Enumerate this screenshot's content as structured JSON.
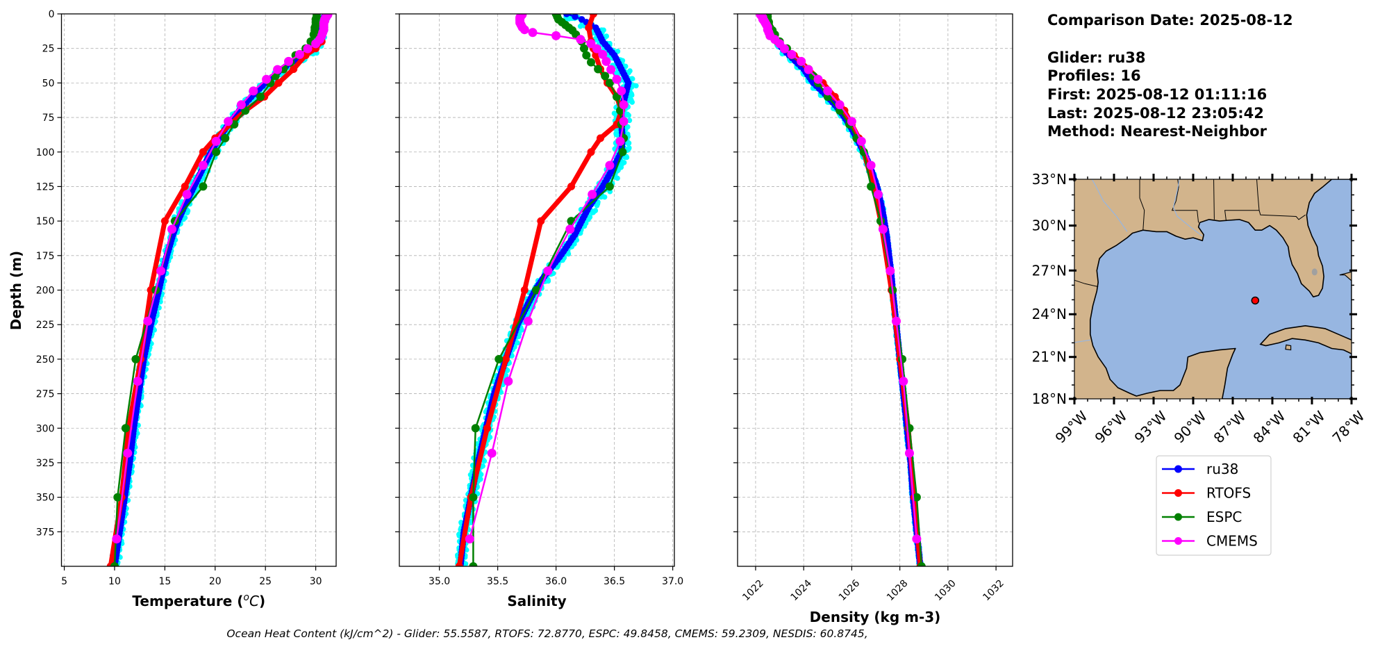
{
  "info": {
    "comparison_date": "Comparison Date: 2025-08-12",
    "glider": "Glider: ru38",
    "profiles": "Profiles: 16",
    "first": "First: 2025-08-12 01:11:16",
    "last": "Last: 2025-08-12 23:05:42",
    "method": "Method: Nearest-Neighbor"
  },
  "footer": "Ocean Heat Content (kJ/cm^2) - Glider: 55.5587,  RTOFS: 72.8770,  ESPC: 49.8458,  CMEMS: 59.2309,  NESDIS: 60.8745,",
  "legend": {
    "placement": "below-map",
    "entries": [
      {
        "label": "ru38",
        "color": "#0000ff"
      },
      {
        "label": "RTOFS",
        "color": "#ff0000"
      },
      {
        "label": "ESPC",
        "color": "#008000"
      },
      {
        "label": "CMEMS",
        "color": "#ff00ff"
      }
    ]
  },
  "chart_data": [
    {
      "type": "line",
      "title": "",
      "xlabel": {
        "prefix": "Temperature (",
        "sup": "o",
        "unit": "C",
        "suffix": ")"
      },
      "ylabel": "Depth (m)",
      "xlim": [
        4.72,
        32.03
      ],
      "ylim": [
        400,
        0
      ],
      "grid": true,
      "xticks": [
        5,
        10,
        15,
        20,
        25,
        30
      ],
      "xtick_labels": [
        "5",
        "10",
        "15",
        "20",
        "25",
        "30"
      ],
      "yticks": [
        0,
        25,
        50,
        75,
        100,
        125,
        150,
        175,
        200,
        225,
        250,
        275,
        300,
        325,
        350,
        375
      ],
      "ytick_labels": [
        "0",
        "25",
        "50",
        "75",
        "100",
        "125",
        "150",
        "175",
        "200",
        "225",
        "250",
        "275",
        "300",
        "325",
        "350",
        "375"
      ],
      "individual_profiles": {
        "count": 16,
        "color": "#00ffff",
        "spread": 0.45
      },
      "series": [
        {
          "name": "ru38",
          "color": "#0000ff",
          "depth": [
            0,
            3,
            10,
            20,
            25,
            30,
            40,
            50,
            60,
            70,
            80,
            90,
            100,
            110,
            125,
            140,
            150,
            160,
            175,
            190,
            200,
            225,
            250,
            275,
            300,
            325,
            350,
            375,
            400
          ],
          "values": [
            30.9,
            30.8,
            30.6,
            30.3,
            29.8,
            28.8,
            26.6,
            25.0,
            23.6,
            22.4,
            21.3,
            20.4,
            19.6,
            18.9,
            17.9,
            16.9,
            16.3,
            15.8,
            15.2,
            14.7,
            14.4,
            13.6,
            12.9,
            12.4,
            11.9,
            11.5,
            11.0,
            10.5,
            10.0
          ]
        },
        {
          "name": "RTOFS",
          "color": "#ff0000",
          "depth": [
            0,
            10,
            20,
            25,
            30,
            40,
            50,
            60,
            70,
            80,
            90,
            100,
            125,
            150,
            200,
            250,
            300,
            350,
            400
          ],
          "values": [
            31.0,
            30.8,
            30.6,
            30.0,
            29.0,
            27.8,
            26.3,
            24.9,
            23.0,
            21.5,
            20.0,
            18.8,
            17.0,
            15.0,
            13.6,
            12.6,
            11.4,
            10.7,
            9.6
          ]
        },
        {
          "name": "ESPC",
          "color": "#008000",
          "depth": [
            0,
            2,
            4,
            6,
            8,
            10,
            12,
            15,
            20,
            25,
            30,
            35,
            40,
            45,
            50,
            60,
            70,
            80,
            90,
            100,
            125,
            150,
            200,
            250,
            300,
            350,
            400
          ],
          "values": [
            30.1,
            30.1,
            30.0,
            30.0,
            30.0,
            29.9,
            29.9,
            29.8,
            29.5,
            29.0,
            28.0,
            27.5,
            26.8,
            26.0,
            25.5,
            24.5,
            23.0,
            21.9,
            21.0,
            20.1,
            18.8,
            16.0,
            14.1,
            12.1,
            11.1,
            10.3,
            10.0
          ]
        },
        {
          "name": "CMEMS",
          "color": "#ff00ff",
          "depth": [
            0.5,
            1.5,
            2.6,
            3.8,
            5.0,
            6.4,
            7.9,
            9.6,
            11.4,
            13.5,
            15.8,
            18.5,
            21.6,
            25.2,
            29.4,
            34.4,
            40.3,
            47.4,
            55.8,
            65.8,
            77.9,
            92.3,
            109.7,
            130.7,
            155.9,
            186.1,
            222.5,
            266.0,
            318.1,
            380.2
          ],
          "values": [
            31.2,
            31.1,
            31.0,
            30.9,
            30.9,
            30.8,
            30.8,
            30.8,
            30.8,
            30.7,
            30.6,
            30.4,
            30.0,
            29.2,
            28.4,
            27.3,
            26.2,
            25.1,
            23.8,
            22.6,
            21.3,
            20.1,
            18.8,
            17.2,
            15.7,
            14.6,
            13.3,
            12.3,
            11.3,
            10.2
          ]
        }
      ]
    },
    {
      "type": "line",
      "title": "",
      "xlabel": "Salinity",
      "xlim": [
        34.657,
        37.014
      ],
      "ylim": [
        400,
        0
      ],
      "grid": true,
      "xticks": [
        35.0,
        35.5,
        36.0,
        36.5,
        37.0
      ],
      "xtick_labels": [
        "35.0",
        "35.5",
        "36.0",
        "36.5",
        "37.0"
      ],
      "yticks": [
        0,
        25,
        50,
        75,
        100,
        125,
        150,
        175,
        200,
        225,
        250,
        275,
        300,
        325,
        350,
        375
      ],
      "individual_profiles": {
        "count": 16,
        "color": "#00ffff",
        "spread": 0.05
      },
      "series": [
        {
          "name": "ru38",
          "color": "#0000ff",
          "depth": [
            0,
            3,
            10,
            20,
            25,
            30,
            40,
            50,
            60,
            70,
            80,
            90,
            100,
            110,
            125,
            140,
            150,
            160,
            175,
            190,
            200,
            225,
            250,
            275,
            300,
            325,
            350,
            375,
            400
          ],
          "values": [
            36.09,
            36.2,
            36.34,
            36.4,
            36.45,
            36.5,
            36.56,
            36.62,
            36.59,
            36.56,
            36.56,
            36.57,
            36.56,
            36.5,
            36.4,
            36.28,
            36.22,
            36.16,
            36.04,
            35.9,
            35.82,
            35.67,
            35.57,
            35.47,
            35.4,
            35.33,
            35.27,
            35.21,
            35.18
          ]
        },
        {
          "name": "RTOFS",
          "color": "#ff0000",
          "depth": [
            0,
            10,
            20,
            25,
            30,
            40,
            50,
            60,
            70,
            80,
            90,
            100,
            125,
            150,
            200,
            250,
            300,
            350,
            400
          ],
          "values": [
            36.32,
            36.28,
            36.3,
            36.32,
            36.34,
            36.38,
            36.44,
            36.52,
            36.56,
            36.52,
            36.38,
            36.3,
            36.13,
            35.87,
            35.73,
            35.57,
            35.41,
            35.27,
            35.17
          ]
        },
        {
          "name": "ESPC",
          "color": "#008000",
          "depth": [
            0,
            2,
            4,
            6,
            8,
            10,
            12,
            15,
            20,
            25,
            30,
            35,
            40,
            45,
            50,
            60,
            70,
            80,
            90,
            100,
            125,
            150,
            200,
            250,
            300,
            350,
            400
          ],
          "values": [
            36.0,
            36.01,
            36.02,
            36.05,
            36.08,
            36.11,
            36.14,
            36.17,
            36.22,
            36.24,
            36.26,
            36.3,
            36.36,
            36.42,
            36.46,
            36.52,
            36.55,
            36.56,
            36.58,
            36.57,
            36.46,
            36.13,
            35.83,
            35.51,
            35.31,
            35.29,
            35.29
          ]
        },
        {
          "name": "CMEMS",
          "color": "#ff00ff",
          "depth": [
            0.5,
            1.5,
            2.6,
            3.8,
            5.0,
            6.4,
            7.9,
            9.6,
            11.4,
            13.5,
            15.8,
            18.5,
            21.6,
            25.2,
            29.4,
            34.4,
            40.3,
            47.4,
            55.8,
            65.8,
            77.9,
            92.3,
            109.7,
            130.7,
            155.9,
            186.1,
            222.5,
            266.0,
            318.1,
            380.2
          ],
          "values": [
            35.71,
            35.7,
            35.69,
            35.69,
            35.69,
            35.69,
            35.7,
            35.71,
            35.73,
            35.8,
            36.0,
            36.21,
            36.3,
            36.35,
            36.4,
            36.43,
            36.47,
            36.52,
            36.56,
            36.58,
            36.58,
            36.55,
            36.46,
            36.31,
            36.12,
            35.93,
            35.76,
            35.59,
            35.45,
            35.26
          ]
        }
      ]
    },
    {
      "type": "line",
      "title": "",
      "xlabel": "Density (kg m-3)",
      "xlim": [
        1021.25,
        1032.69
      ],
      "ylim": [
        400,
        0
      ],
      "grid": true,
      "xticks": [
        1022,
        1024,
        1026,
        1028,
        1030,
        1032
      ],
      "xtick_labels": [
        "1022",
        "1024",
        "1026",
        "1028",
        "1030",
        "1032"
      ],
      "yticks": [
        0,
        25,
        50,
        75,
        100,
        125,
        150,
        175,
        200,
        225,
        250,
        275,
        300,
        325,
        350,
        375
      ],
      "individual_profiles": {
        "count": 16,
        "color": "#00ffff",
        "spread": 0.05
      },
      "series": [
        {
          "name": "ru38",
          "color": "#0000ff",
          "depth": [
            0,
            3,
            10,
            20,
            25,
            30,
            40,
            50,
            60,
            70,
            80,
            90,
            100,
            110,
            125,
            140,
            150,
            160,
            175,
            190,
            200,
            225,
            250,
            275,
            300,
            325,
            350,
            375,
            400
          ],
          "values": [
            1022.45,
            1022.5,
            1022.6,
            1022.9,
            1023.1,
            1023.4,
            1024.0,
            1024.4,
            1025.0,
            1025.5,
            1025.9,
            1026.2,
            1026.5,
            1026.75,
            1027.05,
            1027.25,
            1027.35,
            1027.45,
            1027.55,
            1027.65,
            1027.7,
            1027.85,
            1028.0,
            1028.15,
            1028.3,
            1028.45,
            1028.55,
            1028.7,
            1028.85
          ]
        },
        {
          "name": "RTOFS",
          "color": "#ff0000",
          "depth": [
            0,
            10,
            20,
            25,
            30,
            40,
            50,
            60,
            70,
            80,
            90,
            100,
            125,
            150,
            200,
            250,
            300,
            350,
            400
          ],
          "values": [
            1022.5,
            1022.6,
            1022.9,
            1023.2,
            1023.6,
            1024.2,
            1024.8,
            1025.3,
            1025.7,
            1026.0,
            1026.3,
            1026.5,
            1026.9,
            1027.2,
            1027.65,
            1028.0,
            1028.35,
            1028.6,
            1028.85
          ]
        },
        {
          "name": "ESPC",
          "color": "#008000",
          "depth": [
            0,
            2,
            4,
            6,
            8,
            10,
            12,
            15,
            20,
            25,
            30,
            35,
            40,
            45,
            50,
            60,
            70,
            80,
            90,
            100,
            125,
            150,
            200,
            250,
            300,
            350,
            400
          ],
          "values": [
            1022.5,
            1022.5,
            1022.5,
            1022.55,
            1022.55,
            1022.6,
            1022.7,
            1022.8,
            1023.0,
            1023.3,
            1023.5,
            1023.9,
            1024.2,
            1024.4,
            1024.6,
            1025.0,
            1025.5,
            1025.9,
            1026.2,
            1026.5,
            1026.8,
            1027.2,
            1027.7,
            1028.1,
            1028.4,
            1028.7,
            1028.9
          ]
        },
        {
          "name": "CMEMS",
          "color": "#ff00ff",
          "depth": [
            0.5,
            1.5,
            2.6,
            3.8,
            5.0,
            6.4,
            7.9,
            9.6,
            11.4,
            13.5,
            15.8,
            18.5,
            21.6,
            25.2,
            29.4,
            34.4,
            40.3,
            47.4,
            55.8,
            65.8,
            77.9,
            92.3,
            109.7,
            130.7,
            155.9,
            186.1,
            222.5,
            266.0,
            318.1,
            380.2
          ],
          "values": [
            1022.2,
            1022.25,
            1022.3,
            1022.3,
            1022.35,
            1022.4,
            1022.45,
            1022.5,
            1022.5,
            1022.55,
            1022.6,
            1022.8,
            1023.0,
            1023.2,
            1023.5,
            1023.9,
            1024.2,
            1024.6,
            1025.0,
            1025.5,
            1026.0,
            1026.4,
            1026.8,
            1027.1,
            1027.3,
            1027.6,
            1027.85,
            1028.15,
            1028.4,
            1028.7
          ]
        }
      ]
    },
    {
      "type": "map",
      "lon_range": [
        -99,
        -78
      ],
      "lat_range": [
        18,
        33
      ],
      "lon_ticks": [
        -99,
        -96,
        -93,
        -90,
        -87,
        -84,
        -81,
        -78
      ],
      "lon_tick_labels": [
        "99°W",
        "96°W",
        "93°W",
        "90°W",
        "87°W",
        "84°W",
        "81°W",
        "78°W"
      ],
      "lat_ticks": [
        33,
        30,
        27,
        24,
        21,
        18
      ],
      "lat_tick_labels": [
        "33°N",
        "30°N",
        "27°N",
        "24°N",
        "21°N",
        "18°N"
      ],
      "land_color": "#d2b48c",
      "ocean_color": "#97b6e1",
      "glider_location": {
        "lon": -85.3,
        "lat": 24.95,
        "color": "#ff0000"
      }
    }
  ]
}
